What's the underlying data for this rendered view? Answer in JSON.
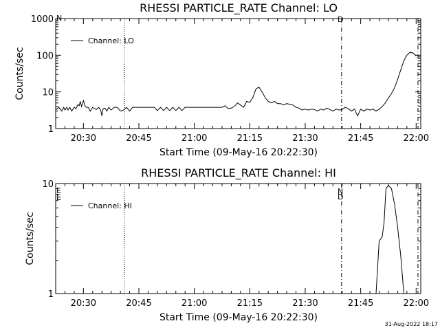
{
  "footer": {
    "timestamp": "31-Aug-2022 18:17"
  },
  "colors": {
    "background": "#ffffff",
    "foreground": "#000000"
  },
  "chart_data": [
    {
      "type": "line",
      "title": "RHESSI PARTICLE_RATE Channel: LO",
      "xlabel": "Start Time (09-May-16 20:22:30)",
      "ylabel": "Counts/sec",
      "yscale": "log",
      "ylim": [
        1,
        1000
      ],
      "xlim": [
        0,
        5925
      ],
      "x_unit": "seconds after 20:22:30",
      "x_ticks": [
        {
          "value": 450,
          "label": "20:30"
        },
        {
          "value": 1350,
          "label": "20:45"
        },
        {
          "value": 2250,
          "label": "21:00"
        },
        {
          "value": 3150,
          "label": "21:15"
        },
        {
          "value": 4050,
          "label": "21:30"
        },
        {
          "value": 4950,
          "label": "21:45"
        },
        {
          "value": 5850,
          "label": "22:00"
        }
      ],
      "y_ticks": [
        {
          "value": 1,
          "label": "1"
        },
        {
          "value": 10,
          "label": "10"
        },
        {
          "value": 100,
          "label": "100"
        },
        {
          "value": 1000,
          "label": "1000"
        }
      ],
      "legend": {
        "placement": "top-left"
      },
      "markers": [
        {
          "x": 1115,
          "style": "dotted"
        },
        {
          "x": 4640,
          "style": "dash-dot"
        },
        {
          "x": 5880,
          "style": "dash-dot"
        }
      ],
      "annotations": [
        "N",
        "D"
      ],
      "series": [
        {
          "name": "Channel: LO",
          "x": [
            0,
            50,
            100,
            130,
            150,
            180,
            200,
            230,
            260,
            300,
            330,
            360,
            380,
            400,
            420,
            450,
            480,
            500,
            530,
            560,
            600,
            630,
            660,
            700,
            730,
            750,
            770,
            800,
            830,
            860,
            900,
            950,
            1000,
            1050,
            1100,
            1150,
            1200,
            1250,
            1300,
            1600,
            1650,
            1700,
            1750,
            1800,
            1850,
            1900,
            1950,
            2000,
            2050,
            2100,
            2150,
            2500,
            2700,
            2750,
            2800,
            2850,
            2900,
            2950,
            3000,
            3050,
            3100,
            3150,
            3200,
            3250,
            3300,
            3350,
            3400,
            3450,
            3500,
            3550,
            3600,
            3650,
            3700,
            3750,
            3800,
            3850,
            3900,
            3950,
            4000,
            4050,
            4100,
            4150,
            4200,
            4250,
            4300,
            4350,
            4400,
            4450,
            4500,
            4550,
            4600,
            4650,
            4700,
            4750,
            4800,
            4850,
            4900,
            4950,
            5000,
            5050,
            5100,
            5150,
            5200,
            5250,
            5300,
            5350,
            5400,
            5450,
            5500,
            5550,
            5600,
            5650,
            5700,
            5750,
            5800,
            5850
          ],
          "y": [
            3.2,
            3.8,
            3.0,
            3.8,
            3.2,
            3.8,
            3.2,
            3.8,
            3.0,
            3.8,
            3.5,
            4.5,
            4.2,
            5.5,
            4.0,
            5.8,
            4.0,
            3.8,
            3.8,
            3.0,
            3.8,
            3.5,
            3.3,
            3.8,
            3.2,
            2.2,
            3.5,
            3.6,
            3.0,
            3.8,
            3.2,
            3.8,
            3.8,
            3.0,
            3.2,
            3.8,
            3.0,
            3.8,
            3.8,
            3.8,
            3.1,
            3.8,
            3.1,
            3.8,
            3.1,
            3.8,
            3.1,
            3.8,
            3.1,
            3.8,
            3.8,
            3.8,
            3.8,
            4.2,
            3.5,
            3.6,
            4.0,
            5.0,
            4.4,
            3.8,
            5.5,
            5.2,
            7.0,
            12.0,
            13.5,
            10.0,
            7.0,
            5.5,
            5.0,
            5.5,
            4.8,
            4.8,
            4.4,
            4.8,
            4.6,
            4.4,
            3.8,
            3.6,
            3.2,
            3.4,
            3.2,
            3.4,
            3.3,
            3.0,
            3.4,
            3.2,
            3.6,
            3.3,
            3.0,
            3.4,
            3.2,
            3.3,
            3.8,
            3.5,
            3.0,
            3.4,
            2.2,
            3.4,
            3.0,
            3.4,
            3.2,
            3.4,
            3.0,
            3.4,
            4.0,
            5.0,
            6.8,
            9.0,
            13.0,
            22.0,
            40.0,
            70.0,
            100.0,
            120.0,
            115.0,
            95.0
          ]
        }
      ]
    },
    {
      "type": "line",
      "title": "RHESSI PARTICLE_RATE Channel: HI",
      "xlabel": "Start Time (09-May-16 20:22:30)",
      "ylabel": "Counts/sec",
      "yscale": "log",
      "ylim": [
        1,
        10
      ],
      "xlim": [
        0,
        5925
      ],
      "x_unit": "seconds after 20:22:30",
      "x_ticks": [
        {
          "value": 450,
          "label": "20:30"
        },
        {
          "value": 1350,
          "label": "20:45"
        },
        {
          "value": 2250,
          "label": "21:00"
        },
        {
          "value": 3150,
          "label": "21:15"
        },
        {
          "value": 4050,
          "label": "21:30"
        },
        {
          "value": 4950,
          "label": "21:45"
        },
        {
          "value": 5850,
          "label": "22:00"
        }
      ],
      "y_ticks": [
        {
          "value": 1,
          "label": "1"
        },
        {
          "value": 10,
          "label": "10"
        }
      ],
      "legend": {
        "placement": "top-left"
      },
      "markers": [
        {
          "x": 1115,
          "style": "dotted"
        },
        {
          "x": 4640,
          "style": "dash-dot"
        },
        {
          "x": 5880,
          "style": "dash-dot"
        }
      ],
      "annotations": [
        "E",
        "E",
        "N",
        "D"
      ],
      "series": [
        {
          "name": "Channel: HI",
          "x": [
            5200,
            5250,
            5300,
            5330,
            5360,
            5400,
            5450,
            5500,
            5550,
            5600,
            5650
          ],
          "y": [
            1.0,
            3.0,
            3.3,
            4.5,
            9.0,
            9.6,
            9.0,
            6.5,
            4.0,
            2.2,
            1.0
          ]
        }
      ]
    }
  ]
}
